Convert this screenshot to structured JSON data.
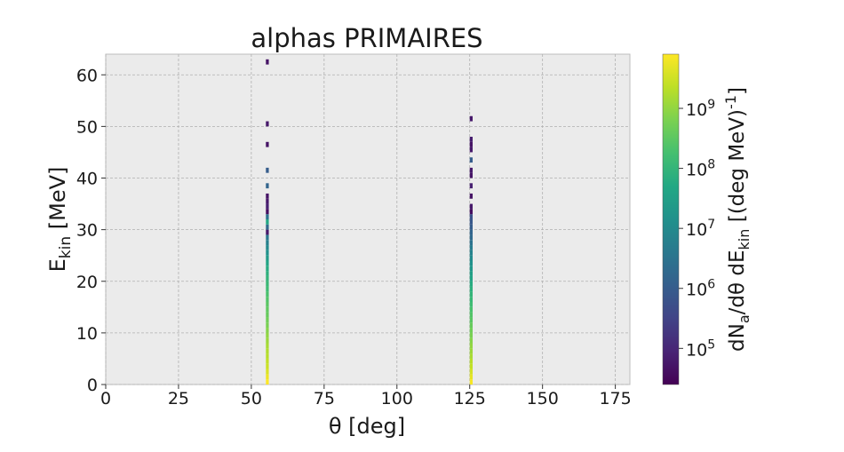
{
  "chart_data": {
    "type": "heatmap",
    "title": "alphas PRIMAIRES",
    "xlabel": "θ [deg]",
    "ylabel": {
      "main": "E",
      "sub": "kin",
      "unit": " [MeV]"
    },
    "xlim": [
      0,
      180
    ],
    "ylim": [
      0,
      64
    ],
    "xticks": [
      0,
      25,
      50,
      75,
      100,
      125,
      150,
      175
    ],
    "yticks": [
      0,
      10,
      20,
      30,
      40,
      50,
      60
    ],
    "grid": true,
    "background": "#ebebeb",
    "colormap": "viridis",
    "colorbar": {
      "scale": "log",
      "range": [
        25000,
        8000000000
      ],
      "ticks": [
        {
          "value": 100000,
          "base": "10",
          "exp": "5"
        },
        {
          "value": 1000000,
          "base": "10",
          "exp": "6"
        },
        {
          "value": 10000000,
          "base": "10",
          "exp": "7"
        },
        {
          "value": 100000000,
          "base": "10",
          "exp": "8"
        },
        {
          "value": 1000000000,
          "base": "10",
          "exp": "9"
        }
      ],
      "label": {
        "p1": "dN",
        "s1": "a",
        "p2": "/dθ dE",
        "s2": "kin",
        "p3": "  [(deg MeV)",
        "sup": "-1",
        "p4": "]"
      }
    },
    "bins": {
      "theta_width": 1.0,
      "energy_height": 1.0
    },
    "series": [
      {
        "theta": 55.5,
        "cells": [
          [
            0,
            8000000000.0
          ],
          [
            1,
            6000000000.0
          ],
          [
            2,
            4000000000.0
          ],
          [
            3,
            3000000000.0
          ],
          [
            4,
            2500000000.0
          ],
          [
            5,
            2000000000.0
          ],
          [
            6,
            1800000000.0
          ],
          [
            7,
            1500000000.0
          ],
          [
            8,
            1200000000.0
          ],
          [
            9,
            1000000000.0
          ],
          [
            10,
            800000000.0
          ],
          [
            11,
            600000000.0
          ],
          [
            12,
            500000000.0
          ],
          [
            13,
            400000000.0
          ],
          [
            14,
            350000000.0
          ],
          [
            15,
            300000000.0
          ],
          [
            16,
            250000000.0
          ],
          [
            17,
            200000000.0
          ],
          [
            18,
            150000000.0
          ],
          [
            19,
            120000000.0
          ],
          [
            20,
            100000000.0
          ],
          [
            21,
            80000000.0
          ],
          [
            22,
            60000000.0
          ],
          [
            23,
            40000000.0
          ],
          [
            24,
            25000000.0
          ],
          [
            25,
            15000000.0
          ],
          [
            26,
            10000000.0
          ],
          [
            27,
            6000000.0
          ],
          [
            28,
            4000000.0
          ],
          [
            29,
            60000.0
          ],
          [
            30,
            2000000.0
          ],
          [
            31,
            50000000.0
          ],
          [
            32,
            3000000.0
          ],
          [
            33,
            40000.0
          ],
          [
            34,
            80000.0
          ],
          [
            35,
            60000.0
          ],
          [
            36,
            50000.0
          ],
          [
            38,
            1500000.0
          ],
          [
            41,
            1000000.0
          ],
          [
            46,
            50000.0
          ],
          [
            50,
            60000.0
          ],
          [
            62,
            50000.0
          ]
        ]
      },
      {
        "theta": 125.5,
        "cells": [
          [
            0,
            7000000000.0
          ],
          [
            1,
            5000000000.0
          ],
          [
            2,
            3500000000.0
          ],
          [
            3,
            2500000000.0
          ],
          [
            4,
            2000000000.0
          ],
          [
            5,
            1500000000.0
          ],
          [
            6,
            1200000000.0
          ],
          [
            7,
            1000000000.0
          ],
          [
            8,
            800000000.0
          ],
          [
            9,
            600000000.0
          ],
          [
            10,
            500000000.0
          ],
          [
            11,
            400000000.0
          ],
          [
            12,
            300000000.0
          ],
          [
            13,
            250000000.0
          ],
          [
            14,
            200000000.0
          ],
          [
            15,
            150000000.0
          ],
          [
            16,
            120000000.0
          ],
          [
            17,
            100000000.0
          ],
          [
            18,
            80000000.0
          ],
          [
            19,
            60000000.0
          ],
          [
            20,
            40000000.0
          ],
          [
            21,
            30000000.0
          ],
          [
            22,
            20000000.0
          ],
          [
            23,
            15000000.0
          ],
          [
            24,
            10000000.0
          ],
          [
            25,
            7000000.0
          ],
          [
            26,
            5000000.0
          ],
          [
            27,
            3000000.0
          ],
          [
            28,
            2000000.0
          ],
          [
            29,
            1500000.0
          ],
          [
            30,
            1000000.0
          ],
          [
            31,
            800000.0
          ],
          [
            32,
            600000.0
          ],
          [
            33,
            40000.0
          ],
          [
            34,
            60000.0
          ],
          [
            36,
            50000.0
          ],
          [
            38,
            80000.0
          ],
          [
            40,
            50000.0
          ],
          [
            41,
            60000.0
          ],
          [
            43,
            1000000.0
          ],
          [
            45,
            60000.0
          ],
          [
            46,
            50000.0
          ],
          [
            47,
            70000.0
          ],
          [
            51,
            60000.0
          ]
        ]
      }
    ]
  }
}
